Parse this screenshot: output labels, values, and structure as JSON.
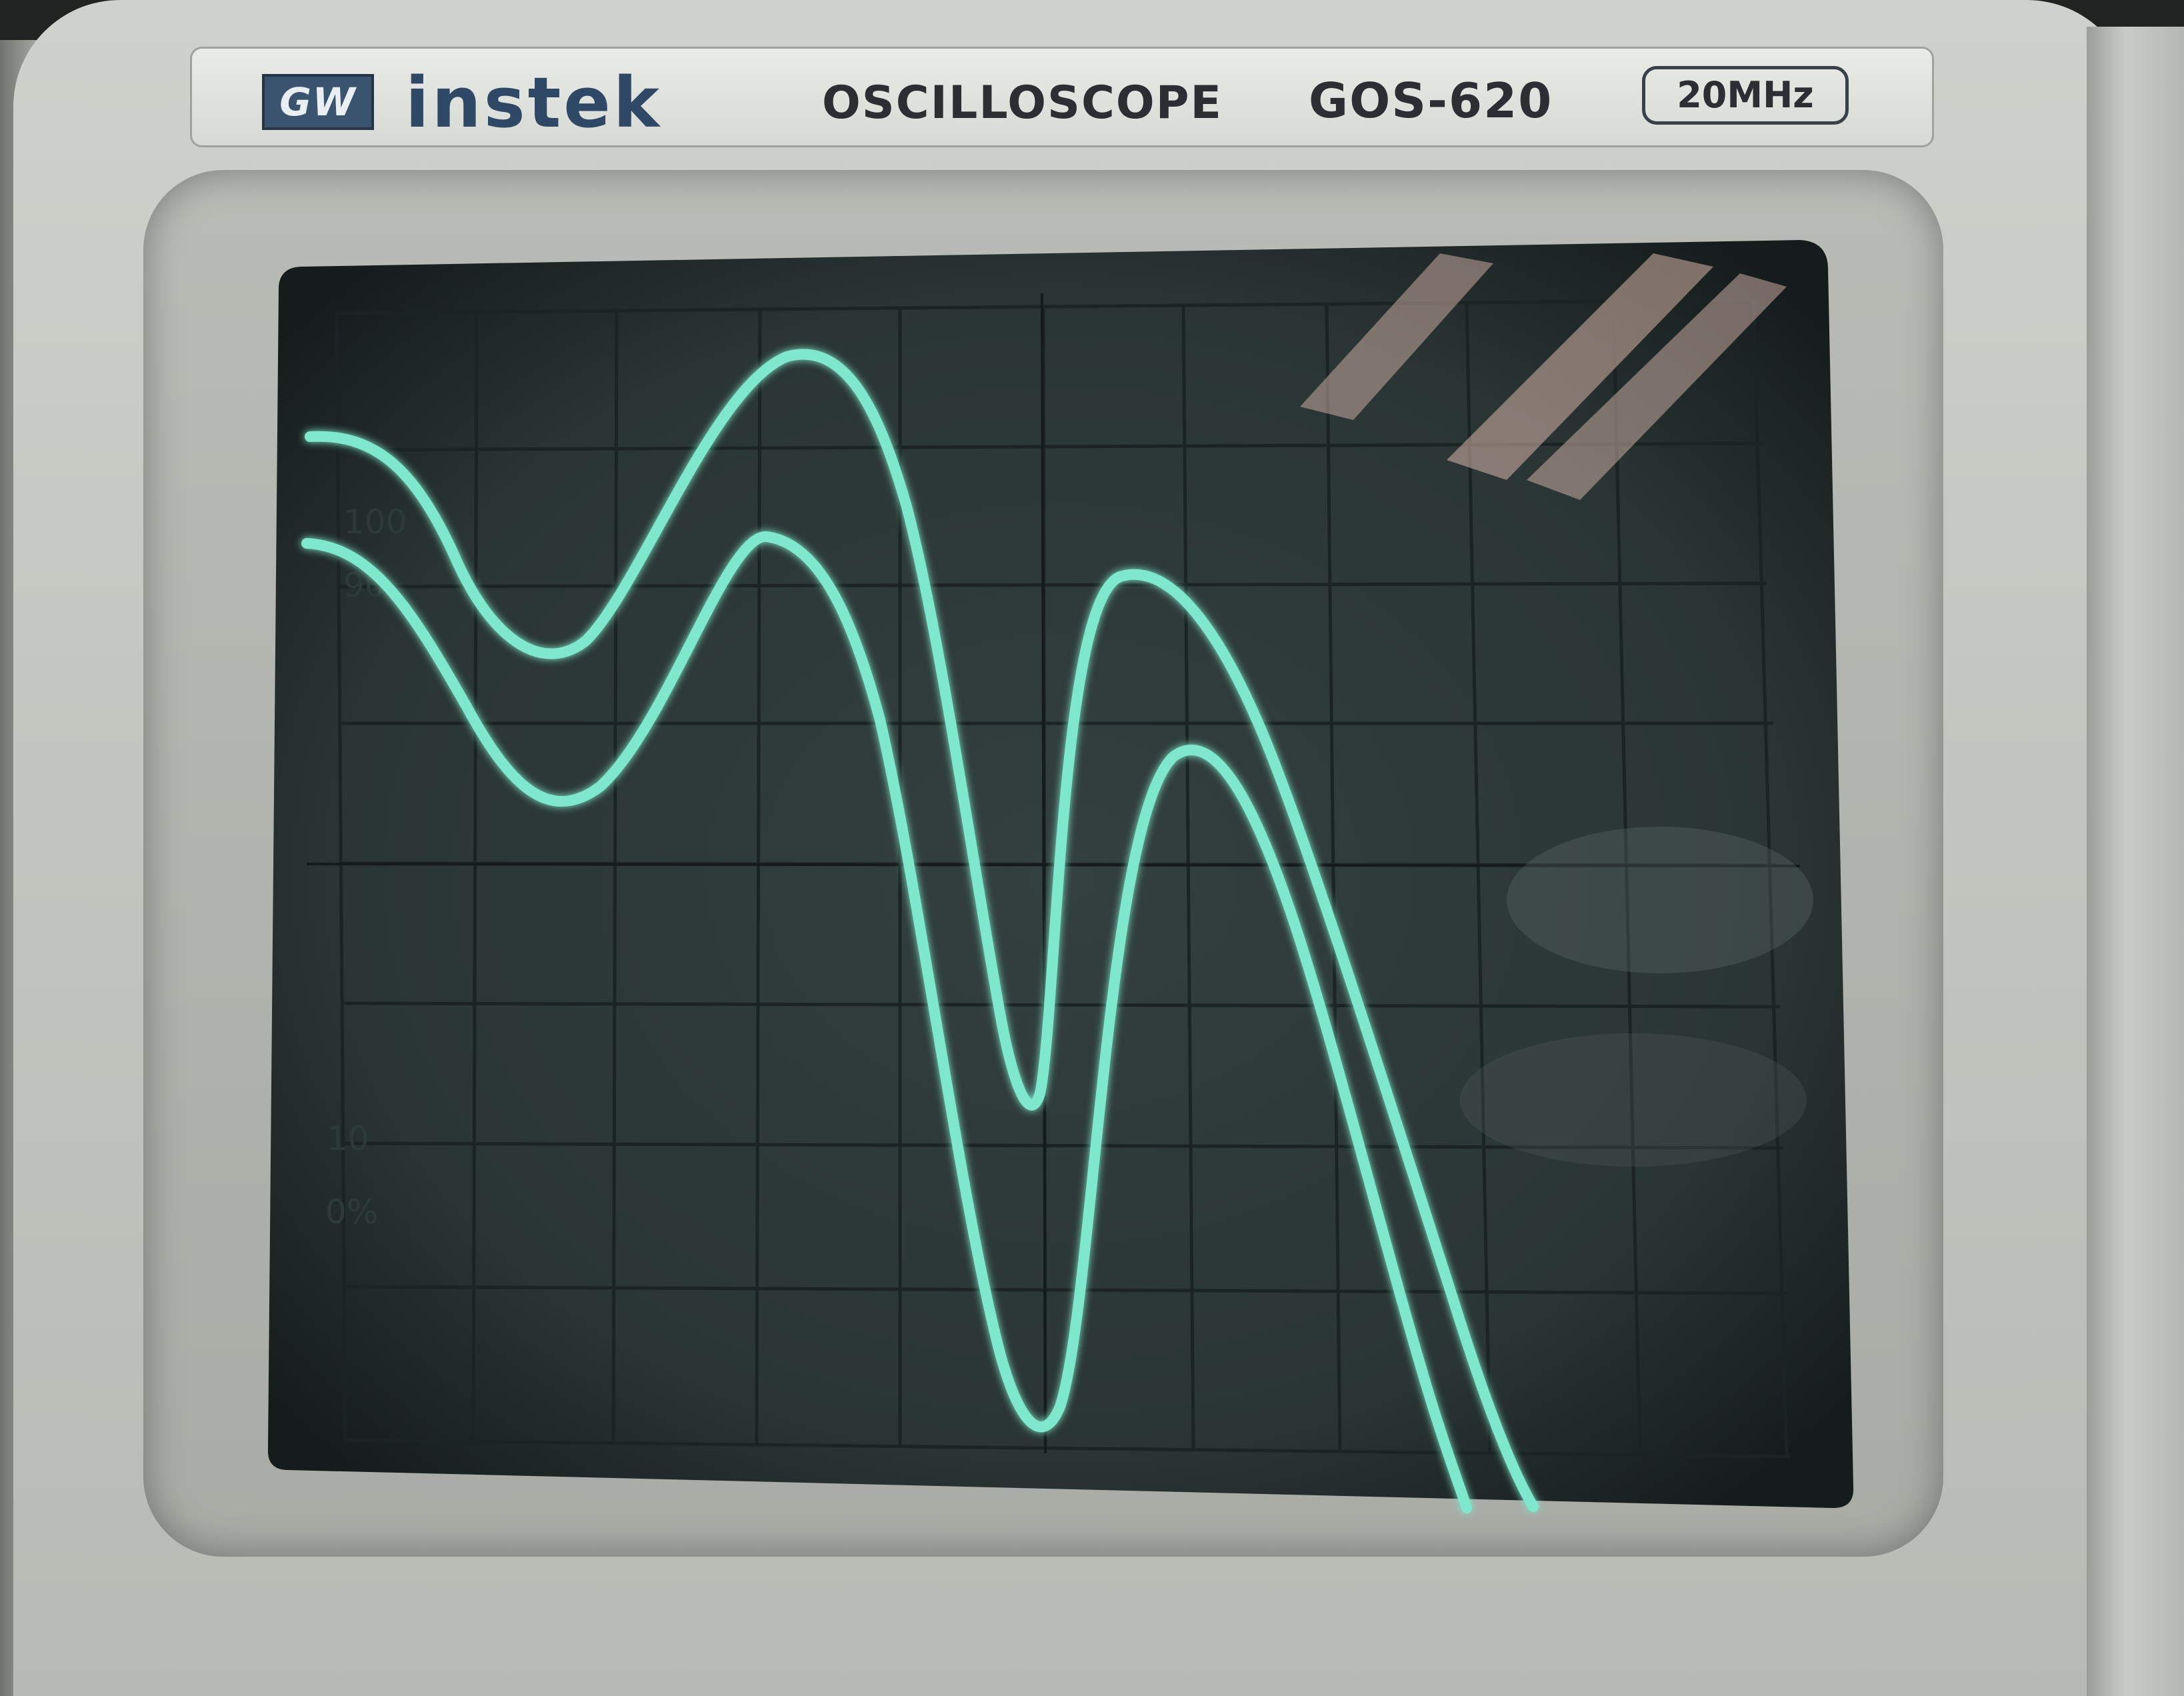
{
  "nameplate": {
    "logo": "GW",
    "brand": "instek",
    "instrument": "OSCILLOSCOPE",
    "model": "GOS-620",
    "bandwidth": "20MHz"
  },
  "graticule_labels": {
    "top_100": "100",
    "top_90": "90",
    "bottom_10": "10",
    "bottom_0": "0%"
  },
  "colors": {
    "trace": "#7fe8cc",
    "screen": "#2c3a39",
    "grid": "#1a2322"
  }
}
